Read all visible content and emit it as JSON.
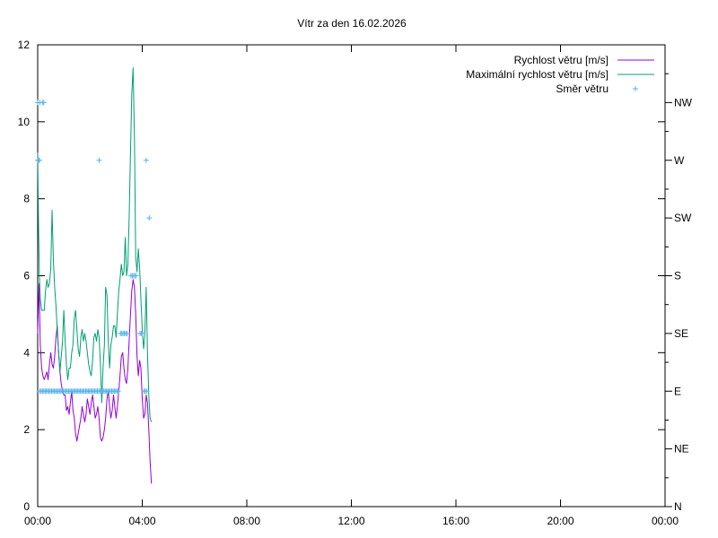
{
  "chart_data": {
    "type": "line",
    "title": "Vítr za den 16.02.2026",
    "xlabel": "",
    "ylabel": "",
    "x_range": [
      "00:00",
      "24:00"
    ],
    "x_ticks": [
      "00:00",
      "04:00",
      "08:00",
      "12:00",
      "16:00",
      "20:00",
      "00:00"
    ],
    "ylim": [
      0,
      12
    ],
    "y_ticks": [
      "0",
      "2",
      "4",
      "6",
      "8",
      "10",
      "12"
    ],
    "y2_ticks": [
      "N",
      "NE",
      "E",
      "SE",
      "S",
      "SW",
      "W",
      "NW"
    ],
    "grid": false,
    "legend": "top-right",
    "series": [
      {
        "name": "Rychlost větru [m/s]",
        "color": "#9400d3",
        "axis": "left",
        "style": "line",
        "points": [
          [
            "00:00",
            4.5
          ],
          [
            "00:03",
            5.8
          ],
          [
            "00:06",
            4.2
          ],
          [
            "00:09",
            3.6
          ],
          [
            "00:12",
            3.4
          ],
          [
            "00:15",
            3.3
          ],
          [
            "00:18",
            3.4
          ],
          [
            "00:21",
            3.5
          ],
          [
            "00:24",
            3.3
          ],
          [
            "00:27",
            3.7
          ],
          [
            "00:30",
            4.0
          ],
          [
            "00:33",
            3.7
          ],
          [
            "00:36",
            3.6
          ],
          [
            "00:39",
            3.9
          ],
          [
            "00:42",
            4.4
          ],
          [
            "00:45",
            4.7
          ],
          [
            "00:48",
            4.0
          ],
          [
            "00:51",
            3.5
          ],
          [
            "00:54",
            3.2
          ],
          [
            "00:57",
            3.0
          ],
          [
            "01:00",
            2.9
          ],
          [
            "01:03",
            2.9
          ],
          [
            "01:06",
            2.5
          ],
          [
            "01:09",
            2.6
          ],
          [
            "01:12",
            2.4
          ],
          [
            "01:15",
            2.7
          ],
          [
            "01:18",
            3.0
          ],
          [
            "01:21",
            2.5
          ],
          [
            "01:24",
            2.3
          ],
          [
            "01:27",
            1.9
          ],
          [
            "01:30",
            1.7
          ],
          [
            "01:33",
            1.9
          ],
          [
            "01:36",
            2.1
          ],
          [
            "01:39",
            2.3
          ],
          [
            "01:42",
            2.6
          ],
          [
            "01:45",
            2.4
          ],
          [
            "01:48",
            2.2
          ],
          [
            "01:51",
            2.4
          ],
          [
            "01:54",
            2.8
          ],
          [
            "01:57",
            2.6
          ],
          [
            "02:00",
            2.4
          ],
          [
            "02:03",
            2.7
          ],
          [
            "02:06",
            2.9
          ],
          [
            "02:09",
            2.6
          ],
          [
            "02:12",
            2.3
          ],
          [
            "02:15",
            2.4
          ],
          [
            "02:18",
            2.6
          ],
          [
            "02:21",
            2.3
          ],
          [
            "02:24",
            1.8
          ],
          [
            "02:27",
            1.7
          ],
          [
            "02:30",
            1.8
          ],
          [
            "02:33",
            2.0
          ],
          [
            "02:36",
            2.3
          ],
          [
            "02:39",
            2.8
          ],
          [
            "02:42",
            3.0
          ],
          [
            "02:45",
            2.6
          ],
          [
            "02:48",
            2.3
          ],
          [
            "02:51",
            2.5
          ],
          [
            "02:54",
            2.9
          ],
          [
            "02:57",
            2.6
          ],
          [
            "03:00",
            2.3
          ],
          [
            "03:03",
            2.6
          ],
          [
            "03:06",
            3.0
          ],
          [
            "03:09",
            3.4
          ],
          [
            "03:12",
            3.9
          ],
          [
            "03:15",
            4.0
          ],
          [
            "03:18",
            3.6
          ],
          [
            "03:21",
            3.3
          ],
          [
            "03:24",
            3.2
          ],
          [
            "03:27",
            3.6
          ],
          [
            "03:30",
            4.3
          ],
          [
            "03:33",
            5.0
          ],
          [
            "03:36",
            5.6
          ],
          [
            "03:39",
            5.9
          ],
          [
            "03:42",
            5.7
          ],
          [
            "03:45",
            5.0
          ],
          [
            "03:48",
            3.9
          ],
          [
            "03:51",
            3.4
          ],
          [
            "03:54",
            3.8
          ],
          [
            "03:57",
            3.6
          ],
          [
            "04:00",
            2.8
          ],
          [
            "04:03",
            2.3
          ],
          [
            "04:06",
            2.4
          ],
          [
            "04:09",
            2.9
          ],
          [
            "04:12",
            2.7
          ],
          [
            "04:15",
            2.0
          ],
          [
            "04:18",
            1.2
          ],
          [
            "04:21",
            0.6
          ]
        ]
      },
      {
        "name": "Maximální rychlost větru [m/s]",
        "color": "#009e73",
        "axis": "left",
        "style": "line",
        "points": [
          [
            "00:00",
            9.2
          ],
          [
            "00:02",
            7.2
          ],
          [
            "00:04",
            6.0
          ],
          [
            "00:06",
            5.4
          ],
          [
            "00:09",
            5.1
          ],
          [
            "00:12",
            5.1
          ],
          [
            "00:15",
            5.1
          ],
          [
            "00:18",
            5.6
          ],
          [
            "00:21",
            5.9
          ],
          [
            "00:24",
            5.7
          ],
          [
            "00:27",
            5.8
          ],
          [
            "00:30",
            6.2
          ],
          [
            "00:33",
            7.7
          ],
          [
            "00:36",
            6.4
          ],
          [
            "00:39",
            5.7
          ],
          [
            "00:42",
            5.2
          ],
          [
            "00:45",
            4.6
          ],
          [
            "00:48",
            4.0
          ],
          [
            "00:51",
            3.5
          ],
          [
            "00:54",
            3.9
          ],
          [
            "00:57",
            4.3
          ],
          [
            "01:00",
            5.1
          ],
          [
            "01:03",
            4.3
          ],
          [
            "01:06",
            3.7
          ],
          [
            "01:09",
            3.3
          ],
          [
            "01:12",
            3.6
          ],
          [
            "01:15",
            3.6
          ],
          [
            "01:18",
            4.0
          ],
          [
            "01:21",
            4.2
          ],
          [
            "01:24",
            4.9
          ],
          [
            "01:27",
            5.1
          ],
          [
            "01:30",
            4.6
          ],
          [
            "01:33",
            4.1
          ],
          [
            "01:36",
            3.9
          ],
          [
            "01:39",
            4.4
          ],
          [
            "01:42",
            4.6
          ],
          [
            "01:45",
            4.3
          ],
          [
            "01:48",
            4.5
          ],
          [
            "01:51",
            4.3
          ],
          [
            "01:54",
            4.0
          ],
          [
            "01:57",
            3.7
          ],
          [
            "02:00",
            3.5
          ],
          [
            "02:03",
            3.4
          ],
          [
            "02:06",
            3.8
          ],
          [
            "02:09",
            4.4
          ],
          [
            "02:12",
            4.5
          ],
          [
            "02:15",
            4.3
          ],
          [
            "02:18",
            4.6
          ],
          [
            "02:21",
            4.4
          ],
          [
            "02:24",
            3.7
          ],
          [
            "02:27",
            2.7
          ],
          [
            "02:30",
            3.6
          ],
          [
            "02:33",
            4.2
          ],
          [
            "02:36",
            5.7
          ],
          [
            "02:39",
            5.5
          ],
          [
            "02:42",
            4.3
          ],
          [
            "02:45",
            3.6
          ],
          [
            "02:48",
            4.2
          ],
          [
            "02:51",
            4.4
          ],
          [
            "02:54",
            4.7
          ],
          [
            "02:57",
            4.7
          ],
          [
            "03:00",
            4.4
          ],
          [
            "03:03",
            5.0
          ],
          [
            "03:06",
            5.6
          ],
          [
            "03:09",
            5.9
          ],
          [
            "03:12",
            6.3
          ],
          [
            "03:15",
            6.0
          ],
          [
            "03:18",
            6.1
          ],
          [
            "03:21",
            7.0
          ],
          [
            "03:24",
            6.0
          ],
          [
            "03:27",
            6.3
          ],
          [
            "03:30",
            7.5
          ],
          [
            "03:33",
            9.2
          ],
          [
            "03:36",
            10.7
          ],
          [
            "03:39",
            11.4
          ],
          [
            "03:42",
            9.6
          ],
          [
            "03:45",
            6.5
          ],
          [
            "03:48",
            6.1
          ],
          [
            "03:51",
            6.7
          ],
          [
            "03:54",
            6.2
          ],
          [
            "03:57",
            5.4
          ],
          [
            "04:00",
            4.6
          ],
          [
            "04:03",
            4.1
          ],
          [
            "04:06",
            4.5
          ],
          [
            "04:09",
            5.7
          ],
          [
            "04:12",
            4.0
          ],
          [
            "04:15",
            2.9
          ],
          [
            "04:18",
            2.3
          ],
          [
            "04:21",
            2.2
          ]
        ]
      },
      {
        "name": "Směr větru",
        "color": "#56b4e9",
        "axis": "right",
        "style": "points",
        "points": [
          [
            "00:00",
            "W"
          ],
          [
            "00:02",
            "W"
          ],
          [
            "00:04",
            "W"
          ],
          [
            "00:00",
            "NW"
          ],
          [
            "00:05",
            "NW"
          ],
          [
            "00:11",
            "NW"
          ],
          [
            "00:14",
            "NW"
          ],
          [
            "00:05",
            "E"
          ],
          [
            "00:08",
            "E"
          ],
          [
            "00:11",
            "E"
          ],
          [
            "00:14",
            "E"
          ],
          [
            "00:17",
            "E"
          ],
          [
            "00:20",
            "E"
          ],
          [
            "00:23",
            "E"
          ],
          [
            "00:26",
            "E"
          ],
          [
            "00:29",
            "E"
          ],
          [
            "00:32",
            "E"
          ],
          [
            "00:35",
            "E"
          ],
          [
            "00:38",
            "E"
          ],
          [
            "00:41",
            "E"
          ],
          [
            "00:44",
            "E"
          ],
          [
            "00:47",
            "E"
          ],
          [
            "00:50",
            "E"
          ],
          [
            "00:53",
            "E"
          ],
          [
            "00:56",
            "E"
          ],
          [
            "00:59",
            "E"
          ],
          [
            "01:02",
            "E"
          ],
          [
            "01:05",
            "E"
          ],
          [
            "01:08",
            "E"
          ],
          [
            "01:11",
            "E"
          ],
          [
            "01:14",
            "E"
          ],
          [
            "01:17",
            "E"
          ],
          [
            "01:20",
            "E"
          ],
          [
            "01:23",
            "E"
          ],
          [
            "01:26",
            "E"
          ],
          [
            "01:29",
            "E"
          ],
          [
            "01:32",
            "E"
          ],
          [
            "01:35",
            "E"
          ],
          [
            "01:38",
            "E"
          ],
          [
            "01:41",
            "E"
          ],
          [
            "01:44",
            "E"
          ],
          [
            "01:47",
            "E"
          ],
          [
            "01:50",
            "E"
          ],
          [
            "01:53",
            "E"
          ],
          [
            "01:56",
            "E"
          ],
          [
            "01:59",
            "E"
          ],
          [
            "02:02",
            "E"
          ],
          [
            "02:05",
            "E"
          ],
          [
            "02:08",
            "E"
          ],
          [
            "02:11",
            "E"
          ],
          [
            "02:14",
            "E"
          ],
          [
            "02:17",
            "E"
          ],
          [
            "02:20",
            "E"
          ],
          [
            "02:23",
            "E"
          ],
          [
            "02:26",
            "E"
          ],
          [
            "02:29",
            "E"
          ],
          [
            "02:32",
            "E"
          ],
          [
            "02:35",
            "E"
          ],
          [
            "02:38",
            "E"
          ],
          [
            "02:41",
            "E"
          ],
          [
            "02:44",
            "E"
          ],
          [
            "02:47",
            "E"
          ],
          [
            "02:50",
            "E"
          ],
          [
            "02:53",
            "E"
          ],
          [
            "02:56",
            "E"
          ],
          [
            "02:59",
            "E"
          ],
          [
            "03:02",
            "E"
          ],
          [
            "03:05",
            "E"
          ],
          [
            "02:21",
            "W"
          ],
          [
            "03:10",
            "SE"
          ],
          [
            "03:13",
            "SE"
          ],
          [
            "03:16",
            "SE"
          ],
          [
            "03:19",
            "SE"
          ],
          [
            "03:22",
            "SE"
          ],
          [
            "03:25",
            "SE"
          ],
          [
            "03:34",
            "S"
          ],
          [
            "03:37",
            "S"
          ],
          [
            "03:40",
            "S"
          ],
          [
            "03:43",
            "S"
          ],
          [
            "03:46",
            "S"
          ],
          [
            "03:55",
            "SE"
          ],
          [
            "03:58",
            "SE"
          ],
          [
            "04:01",
            "SE"
          ],
          [
            "04:04",
            "E"
          ],
          [
            "04:07",
            "E"
          ],
          [
            "04:10",
            "E"
          ],
          [
            "04:09",
            "W"
          ],
          [
            "04:16",
            "SW"
          ]
        ]
      }
    ]
  }
}
